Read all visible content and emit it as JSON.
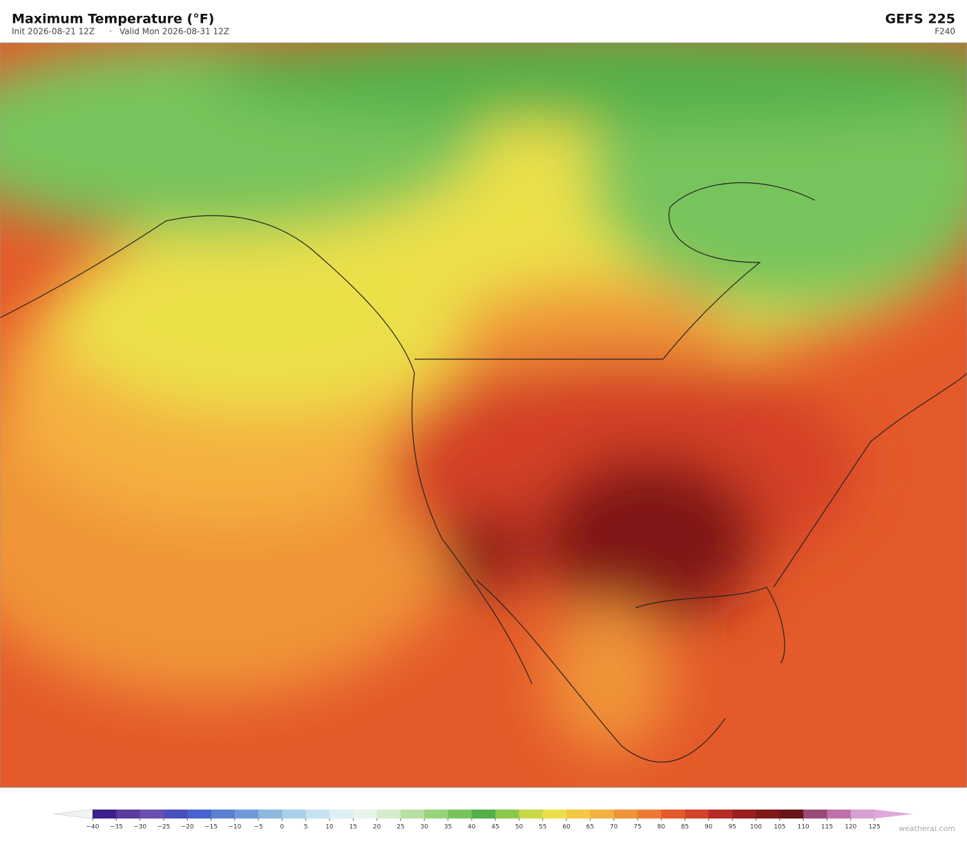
{
  "header": {
    "title": "Maximum Temperature  (°F)",
    "init": "Init 2026-08-21 12Z",
    "separator": "·",
    "valid": "Valid Mon 2026-08-31 12Z",
    "model": "GEFS  225",
    "step": "F240"
  },
  "colorbar": {
    "ticks": [
      {
        "value": -40,
        "label": "−40"
      },
      {
        "value": -35,
        "label": "−35"
      },
      {
        "value": -30,
        "label": "−30"
      },
      {
        "value": -25,
        "label": "−25"
      },
      {
        "value": -20,
        "label": "−20"
      },
      {
        "value": -15,
        "label": "−15"
      },
      {
        "value": -10,
        "label": "−10"
      },
      {
        "value": -5,
        "label": "−5"
      },
      0,
      5,
      10,
      15,
      20,
      25,
      30,
      35,
      40,
      45,
      50,
      55,
      60,
      65,
      70,
      75,
      80,
      85,
      90,
      95,
      100,
      105,
      110,
      115,
      120,
      125
    ],
    "colors": [
      "#3b1f8c",
      "#5a3a9a",
      "#6a4fb0",
      "#4a4fc0",
      "#4a62cf",
      "#5a80d0",
      "#6f9ad8",
      "#8cb8e0",
      "#a8d0ea",
      "#c4e2f0",
      "#dceff4",
      "#e6f4ea",
      "#d4eccc",
      "#b8e0a0",
      "#98d47a",
      "#78c45c",
      "#54b04a",
      "#8cc84a",
      "#c8d848",
      "#ece04a",
      "#f4c842",
      "#f4b040",
      "#f09438",
      "#ec7a30",
      "#e45a2a",
      "#d44028",
      "#b82a24",
      "#9a1e20",
      "#801818",
      "#6a1418",
      "#9a4a78",
      "#c070a8",
      "#d8a0d0"
    ],
    "under_color": "#f2f2f2",
    "over_color": "#e0a8dc"
  },
  "footer": {
    "credit": "weatherai.com"
  }
}
